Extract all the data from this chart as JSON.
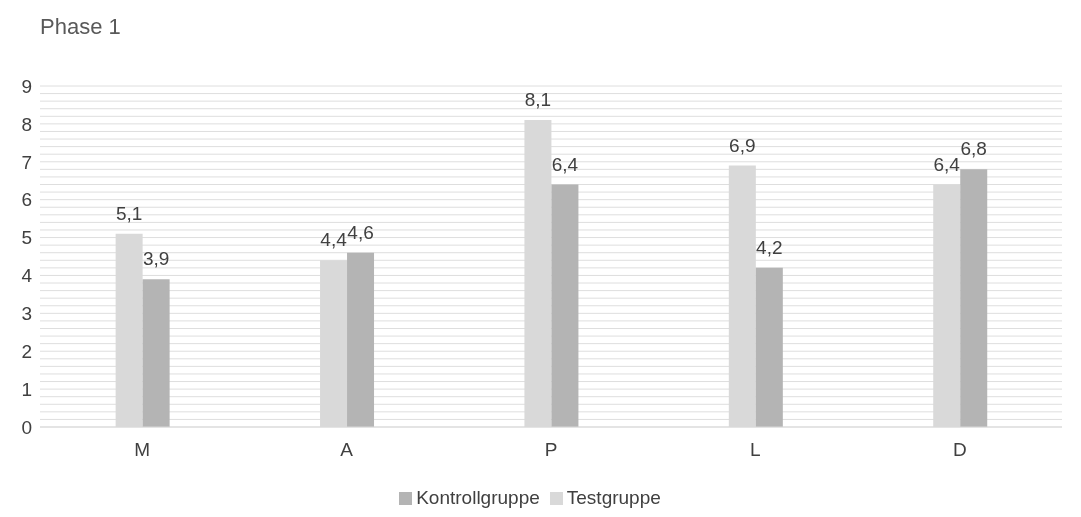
{
  "chart_data": {
    "type": "bar",
    "title": "Phase 1",
    "categories": [
      "M",
      "A",
      "P",
      "L",
      "D"
    ],
    "series": [
      {
        "name": "Testgruppe",
        "color": "#d9d9d9",
        "values": [
          5.1,
          4.4,
          8.1,
          6.9,
          6.4
        ],
        "value_labels": [
          "5,1",
          "4,4",
          "8,1",
          "6,9",
          "6,4"
        ]
      },
      {
        "name": "Kontrollgruppe",
        "color": "#b4b4b4",
        "values": [
          3.9,
          4.6,
          6.4,
          4.2,
          6.8
        ],
        "value_labels": [
          "3,9",
          "4,6",
          "6,4",
          "4,2",
          "6,8"
        ]
      }
    ],
    "ylim": [
      0,
      9
    ],
    "yticks": [
      0,
      {
        "value": 0.2,
        "label": null
      },
      {
        "value": 0.4,
        "label": null
      },
      {
        "value": 0.6,
        "label": null
      },
      {
        "value": 0.8,
        "label": null
      },
      1,
      {
        "value": 1.2,
        "label": null
      },
      {
        "value": 1.4,
        "label": null
      },
      {
        "value": 1.6,
        "label": null
      },
      {
        "value": 1.8,
        "label": null
      },
      2,
      {
        "value": 2.2,
        "label": null
      },
      {
        "value": 2.4,
        "label": null
      },
      {
        "value": 2.6,
        "label": null
      },
      {
        "value": 2.8,
        "label": null
      },
      3,
      {
        "value": 3.2,
        "label": null
      },
      {
        "value": 3.4,
        "label": null
      },
      {
        "value": 3.6,
        "label": null
      },
      {
        "value": 3.8,
        "label": null
      },
      4,
      {
        "value": 4.2,
        "label": null
      },
      {
        "value": 4.4,
        "label": null
      },
      {
        "value": 4.6,
        "label": null
      },
      {
        "value": 4.8,
        "label": null
      },
      5,
      {
        "value": 5.2,
        "label": null
      },
      {
        "value": 5.4,
        "label": null
      },
      {
        "value": 5.6,
        "label": null
      },
      {
        "value": 5.8,
        "label": null
      },
      6,
      {
        "value": 6.2,
        "label": null
      },
      {
        "value": 6.4,
        "label": null
      },
      {
        "value": 6.6,
        "label": null
      },
      {
        "value": 6.8,
        "label": null
      },
      7,
      {
        "value": 7.2,
        "label": null
      },
      {
        "value": 7.4,
        "label": null
      },
      {
        "value": 7.6,
        "label": null
      },
      {
        "value": 7.8,
        "label": null
      },
      8,
      {
        "value": 8.2,
        "label": null
      },
      {
        "value": 8.4,
        "label": null
      },
      {
        "value": 8.6,
        "label": null
      },
      {
        "value": 8.8,
        "label": null
      },
      9
    ],
    "grid": "y",
    "legend": "bottom"
  }
}
